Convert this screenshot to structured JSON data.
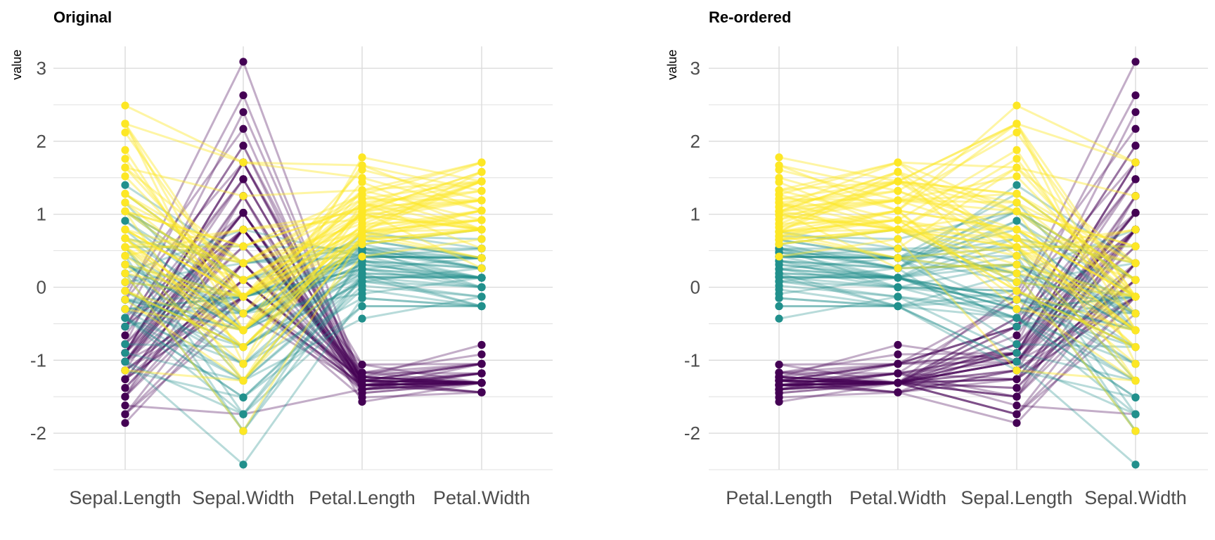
{
  "colors": {
    "setosa": "#440154",
    "versicolor": "#21908C",
    "virginica": "#FDE725",
    "grid": "#d9d9d9"
  },
  "chart_data": [
    {
      "type": "line",
      "title": "Original",
      "xlabel": "",
      "ylabel": "value",
      "ylim": [
        -2.5,
        3.3
      ],
      "yticks": [
        -2,
        -1,
        0,
        1,
        2,
        3
      ],
      "categories": [
        "Sepal.Length",
        "Sepal.Width",
        "Petal.Length",
        "Petal.Width"
      ],
      "grid": true,
      "legend": "none"
    },
    {
      "type": "line",
      "title": "Re-ordered",
      "xlabel": "",
      "ylabel": "value",
      "ylim": [
        -2.5,
        3.3
      ],
      "yticks": [
        -2,
        -1,
        0,
        1,
        2,
        3
      ],
      "categories": [
        "Petal.Length",
        "Petal.Width",
        "Sepal.Length",
        "Sepal.Width"
      ],
      "grid": true,
      "legend": "none"
    }
  ],
  "observations": [
    {
      "g": 0,
      "SL": -0.9,
      "SW": 1.02,
      "PL": -1.34,
      "PW": -1.31
    },
    {
      "g": 0,
      "SL": -1.14,
      "SW": -0.13,
      "PL": -1.34,
      "PW": -1.31
    },
    {
      "g": 0,
      "SL": -1.38,
      "SW": 0.33,
      "PL": -1.4,
      "PW": -1.31
    },
    {
      "g": 0,
      "SL": -1.5,
      "SW": 0.1,
      "PL": -1.28,
      "PW": -1.31
    },
    {
      "g": 0,
      "SL": -1.02,
      "SW": 1.25,
      "PL": -1.34,
      "PW": -1.31
    },
    {
      "g": 0,
      "SL": -0.54,
      "SW": 1.94,
      "PL": -1.17,
      "PW": -1.05
    },
    {
      "g": 0,
      "SL": -1.5,
      "SW": 0.79,
      "PL": -1.34,
      "PW": -1.18
    },
    {
      "g": 0,
      "SL": -1.02,
      "SW": 0.79,
      "PL": -1.28,
      "PW": -1.31
    },
    {
      "g": 0,
      "SL": -1.74,
      "SW": -0.36,
      "PL": -1.34,
      "PW": -1.31
    },
    {
      "g": 0,
      "SL": -1.14,
      "SW": 0.1,
      "PL": -1.28,
      "PW": -1.44
    },
    {
      "g": 0,
      "SL": -0.54,
      "SW": 1.48,
      "PL": -1.28,
      "PW": -1.31
    },
    {
      "g": 0,
      "SL": -1.26,
      "SW": 0.79,
      "PL": -1.23,
      "PW": -1.31
    },
    {
      "g": 0,
      "SL": -1.26,
      "SW": -0.13,
      "PL": -1.34,
      "PW": -1.44
    },
    {
      "g": 0,
      "SL": -1.86,
      "SW": -0.13,
      "PL": -1.51,
      "PW": -1.44
    },
    {
      "g": 0,
      "SL": -0.05,
      "SW": 2.17,
      "PL": -1.45,
      "PW": -1.31
    },
    {
      "g": 0,
      "SL": -0.17,
      "SW": 3.09,
      "PL": -1.28,
      "PW": -1.05
    },
    {
      "g": 0,
      "SL": -0.54,
      "SW": 1.94,
      "PL": -1.4,
      "PW": -1.05
    },
    {
      "g": 0,
      "SL": -0.9,
      "SW": 1.02,
      "PL": -1.34,
      "PW": -1.18
    },
    {
      "g": 0,
      "SL": -0.17,
      "SW": 1.71,
      "PL": -1.17,
      "PW": -1.18
    },
    {
      "g": 0,
      "SL": -0.9,
      "SW": 1.71,
      "PL": -1.28,
      "PW": -1.18
    },
    {
      "g": 0,
      "SL": -0.54,
      "SW": 0.79,
      "PL": -1.17,
      "PW": -1.31
    },
    {
      "g": 0,
      "SL": -0.9,
      "SW": 1.48,
      "PL": -1.28,
      "PW": -1.05
    },
    {
      "g": 0,
      "SL": -1.5,
      "SW": 1.25,
      "PL": -1.57,
      "PW": -1.31
    },
    {
      "g": 0,
      "SL": -0.9,
      "SW": 0.56,
      "PL": -1.17,
      "PW": -0.92
    },
    {
      "g": 0,
      "SL": -1.26,
      "SW": 0.79,
      "PL": -1.06,
      "PW": -1.31
    },
    {
      "g": 0,
      "SL": -1.02,
      "SW": -0.13,
      "PL": -1.23,
      "PW": -1.31
    },
    {
      "g": 0,
      "SL": -1.02,
      "SW": 0.79,
      "PL": -1.23,
      "PW": -1.05
    },
    {
      "g": 0,
      "SL": -0.78,
      "SW": 1.02,
      "PL": -1.28,
      "PW": -1.31
    },
    {
      "g": 0,
      "SL": -0.78,
      "SW": 0.79,
      "PL": -1.34,
      "PW": -1.31
    },
    {
      "g": 0,
      "SL": -1.38,
      "SW": 0.33,
      "PL": -1.23,
      "PW": -1.31
    },
    {
      "g": 0,
      "SL": -1.26,
      "SW": 0.1,
      "PL": -1.23,
      "PW": -1.31
    },
    {
      "g": 0,
      "SL": -0.54,
      "SW": 0.79,
      "PL": -1.28,
      "PW": -1.05
    },
    {
      "g": 0,
      "SL": -0.78,
      "SW": 2.4,
      "PL": -1.28,
      "PW": -1.44
    },
    {
      "g": 0,
      "SL": -0.42,
      "SW": 2.63,
      "PL": -1.34,
      "PW": -1.31
    },
    {
      "g": 0,
      "SL": -1.14,
      "SW": 0.1,
      "PL": -1.28,
      "PW": -1.31
    },
    {
      "g": 0,
      "SL": -1.02,
      "SW": 0.33,
      "PL": -1.45,
      "PW": -1.31
    },
    {
      "g": 0,
      "SL": -0.42,
      "SW": 1.02,
      "PL": -1.4,
      "PW": -1.31
    },
    {
      "g": 0,
      "SL": -1.14,
      "SW": 1.25,
      "PL": -1.34,
      "PW": -1.44
    },
    {
      "g": 0,
      "SL": -1.74,
      "SW": -0.13,
      "PL": -1.4,
      "PW": -1.31
    },
    {
      "g": 0,
      "SL": -0.9,
      "SW": 0.79,
      "PL": -1.28,
      "PW": -1.31
    },
    {
      "g": 0,
      "SL": -1.02,
      "SW": 1.02,
      "PL": -1.4,
      "PW": -1.18
    },
    {
      "g": 0,
      "SL": -1.62,
      "SW": -1.74,
      "PL": -1.4,
      "PW": -1.18
    },
    {
      "g": 0,
      "SL": -1.74,
      "SW": 0.33,
      "PL": -1.4,
      "PW": -1.31
    },
    {
      "g": 0,
      "SL": -1.02,
      "SW": 1.02,
      "PL": -1.23,
      "PW": -0.79
    },
    {
      "g": 0,
      "SL": -0.9,
      "SW": 1.71,
      "PL": -1.06,
      "PW": -1.05
    },
    {
      "g": 0,
      "SL": -1.26,
      "SW": -0.13,
      "PL": -1.34,
      "PW": -1.18
    },
    {
      "g": 0,
      "SL": -0.9,
      "SW": 1.71,
      "PL": -1.23,
      "PW": -1.31
    },
    {
      "g": 0,
      "SL": -1.5,
      "SW": 0.33,
      "PL": -1.34,
      "PW": -1.31
    },
    {
      "g": 0,
      "SL": -0.66,
      "SW": 1.48,
      "PL": -1.28,
      "PW": -1.31
    },
    {
      "g": 0,
      "SL": -1.02,
      "SW": 0.56,
      "PL": -1.34,
      "PW": -1.31
    },
    {
      "g": 1,
      "SL": 1.4,
      "SW": 0.33,
      "PL": 0.53,
      "PW": 0.26
    },
    {
      "g": 1,
      "SL": 0.67,
      "SW": 0.33,
      "PL": 0.42,
      "PW": 0.4
    },
    {
      "g": 1,
      "SL": 1.28,
      "SW": 0.1,
      "PL": 0.65,
      "PW": 0.4
    },
    {
      "g": 1,
      "SL": -0.42,
      "SW": -1.74,
      "PL": 0.14,
      "PW": 0.13
    },
    {
      "g": 1,
      "SL": 0.79,
      "SW": -0.59,
      "PL": 0.48,
      "PW": 0.4
    },
    {
      "g": 1,
      "SL": -0.17,
      "SW": -0.59,
      "PL": 0.42,
      "PW": 0.13
    },
    {
      "g": 1,
      "SL": 0.55,
      "SW": 0.56,
      "PL": 0.53,
      "PW": 0.53
    },
    {
      "g": 1,
      "SL": -1.14,
      "SW": -1.51,
      "PL": -0.26,
      "PW": -0.26
    },
    {
      "g": 1,
      "SL": 0.91,
      "SW": -0.36,
      "PL": 0.48,
      "PW": 0.13
    },
    {
      "g": 1,
      "SL": -0.78,
      "SW": -0.82,
      "PL": 0.08,
      "PW": 0.26
    },
    {
      "g": 1,
      "SL": -1.02,
      "SW": -2.43,
      "PL": -0.15,
      "PW": -0.26
    },
    {
      "g": 1,
      "SL": 0.07,
      "SW": -0.13,
      "PL": 0.25,
      "PW": 0.4
    },
    {
      "g": 1,
      "SL": 0.19,
      "SW": -1.97,
      "PL": 0.14,
      "PW": -0.26
    },
    {
      "g": 1,
      "SL": 0.31,
      "SW": -0.36,
      "PL": 0.53,
      "PW": 0.26
    },
    {
      "g": 1,
      "SL": -0.3,
      "SW": -0.36,
      "PL": -0.09,
      "PW": 0.13
    },
    {
      "g": 1,
      "SL": 1.04,
      "SW": 0.1,
      "PL": 0.36,
      "PW": 0.26
    },
    {
      "g": 1,
      "SL": -0.3,
      "SW": -0.13,
      "PL": 0.42,
      "PW": 0.4
    },
    {
      "g": 1,
      "SL": -0.05,
      "SW": -0.82,
      "PL": 0.19,
      "PW": -0.26
    },
    {
      "g": 1,
      "SL": 0.43,
      "SW": -1.97,
      "PL": 0.42,
      "PW": 0.4
    },
    {
      "g": 1,
      "SL": -0.3,
      "SW": -1.28,
      "PL": 0.08,
      "PW": -0.13
    },
    {
      "g": 1,
      "SL": 0.07,
      "SW": 0.33,
      "PL": 0.59,
      "PW": 0.79
    },
    {
      "g": 1,
      "SL": 0.31,
      "SW": -0.59,
      "PL": 0.14,
      "PW": 0.13
    },
    {
      "g": 1,
      "SL": 0.55,
      "SW": -1.28,
      "PL": 0.65,
      "PW": 0.4
    },
    {
      "g": 1,
      "SL": 0.31,
      "SW": -0.59,
      "PL": 0.53,
      "PW": 0.0
    },
    {
      "g": 1,
      "SL": 0.67,
      "SW": -0.36,
      "PL": 0.31,
      "PW": 0.13
    },
    {
      "g": 1,
      "SL": 0.91,
      "SW": -0.13,
      "PL": 0.36,
      "PW": 0.26
    },
    {
      "g": 1,
      "SL": 1.16,
      "SW": -0.59,
      "PL": 0.59,
      "PW": 0.26
    },
    {
      "g": 1,
      "SL": 1.04,
      "SW": -0.13,
      "PL": 0.7,
      "PW": 0.66
    },
    {
      "g": 1,
      "SL": 0.19,
      "SW": -0.36,
      "PL": 0.42,
      "PW": 0.4
    },
    {
      "g": 1,
      "SL": -0.17,
      "SW": -1.05,
      "PL": -0.15,
      "PW": -0.26
    },
    {
      "g": 1,
      "SL": -0.42,
      "SW": -1.51,
      "PL": 0.02,
      "PW": -0.13
    },
    {
      "g": 1,
      "SL": -0.42,
      "SW": -1.51,
      "PL": -0.03,
      "PW": -0.26
    },
    {
      "g": 1,
      "SL": -0.05,
      "SW": -0.82,
      "PL": 0.08,
      "PW": 0.0
    },
    {
      "g": 1,
      "SL": 0.19,
      "SW": -0.82,
      "PL": 0.76,
      "PW": 0.53
    },
    {
      "g": 1,
      "SL": -0.54,
      "SW": -0.13,
      "PL": 0.42,
      "PW": 0.4
    },
    {
      "g": 1,
      "SL": 0.19,
      "SW": 0.79,
      "PL": 0.42,
      "PW": 0.53
    },
    {
      "g": 1,
      "SL": 1.04,
      "SW": 0.1,
      "PL": 0.53,
      "PW": 0.4
    },
    {
      "g": 1,
      "SL": 0.55,
      "SW": -1.74,
      "PL": 0.36,
      "PW": 0.13
    },
    {
      "g": 1,
      "SL": -0.3,
      "SW": -0.13,
      "PL": 0.19,
      "PW": 0.13
    },
    {
      "g": 1,
      "SL": -0.42,
      "SW": -1.28,
      "PL": 0.14,
      "PW": 0.13
    },
    {
      "g": 1,
      "SL": -0.42,
      "SW": -1.05,
      "PL": 0.36,
      "PW": 0.0
    },
    {
      "g": 1,
      "SL": 0.31,
      "SW": -0.13,
      "PL": 0.48,
      "PW": 0.26
    },
    {
      "g": 1,
      "SL": -0.05,
      "SW": -1.05,
      "PL": 0.14,
      "PW": 0.0
    },
    {
      "g": 1,
      "SL": -1.02,
      "SW": -1.74,
      "PL": -0.26,
      "PW": -0.26
    },
    {
      "g": 1,
      "SL": -0.3,
      "SW": -0.82,
      "PL": 0.25,
      "PW": 0.13
    },
    {
      "g": 1,
      "SL": -0.17,
      "SW": -0.13,
      "PL": 0.25,
      "PW": 0.0
    },
    {
      "g": 1,
      "SL": -0.17,
      "SW": -0.36,
      "PL": 0.25,
      "PW": 0.13
    },
    {
      "g": 1,
      "SL": 0.43,
      "SW": -0.36,
      "PL": 0.31,
      "PW": 0.13
    },
    {
      "g": 1,
      "SL": -0.9,
      "SW": -1.28,
      "PL": -0.43,
      "PW": -0.13
    },
    {
      "g": 1,
      "SL": -0.17,
      "SW": -0.59,
      "PL": 0.19,
      "PW": 0.13
    },
    {
      "g": 2,
      "SL": 0.55,
      "SW": 0.56,
      "PL": 1.27,
      "PW": 1.71
    },
    {
      "g": 2,
      "SL": -0.05,
      "SW": -0.82,
      "PL": 0.76,
      "PW": 0.92
    },
    {
      "g": 2,
      "SL": 1.52,
      "SW": -0.13,
      "PL": 1.21,
      "PW": 1.19
    },
    {
      "g": 2,
      "SL": 0.55,
      "SW": -0.36,
      "PL": 1.04,
      "PW": 0.79
    },
    {
      "g": 2,
      "SL": 0.79,
      "SW": -0.13,
      "PL": 1.16,
      "PW": 1.32
    },
    {
      "g": 2,
      "SL": 2.12,
      "SW": -0.13,
      "PL": 1.61,
      "PW": 1.19
    },
    {
      "g": 2,
      "SL": -1.14,
      "SW": -1.28,
      "PL": 0.42,
      "PW": 0.66
    },
    {
      "g": 2,
      "SL": 1.76,
      "SW": -0.36,
      "PL": 1.44,
      "PW": 0.79
    },
    {
      "g": 2,
      "SL": 1.04,
      "SW": -1.28,
      "PL": 1.16,
      "PW": 0.79
    },
    {
      "g": 2,
      "SL": 1.64,
      "SW": 1.25,
      "PL": 1.33,
      "PW": 1.71
    },
    {
      "g": 2,
      "SL": 0.79,
      "SW": 0.33,
      "PL": 0.76,
      "PW": 1.05
    },
    {
      "g": 2,
      "SL": 0.67,
      "SW": -0.82,
      "PL": 0.87,
      "PW": 0.92
    },
    {
      "g": 2,
      "SL": 1.16,
      "SW": -0.13,
      "PL": 0.99,
      "PW": 1.19
    },
    {
      "g": 2,
      "SL": -0.17,
      "SW": -1.28,
      "PL": 0.7,
      "PW": 1.05
    },
    {
      "g": 2,
      "SL": -0.05,
      "SW": -0.59,
      "PL": 0.76,
      "PW": 1.58
    },
    {
      "g": 2,
      "SL": 0.67,
      "SW": 0.33,
      "PL": 0.87,
      "PW": 1.45
    },
    {
      "g": 2,
      "SL": 0.79,
      "SW": -0.13,
      "PL": 0.99,
      "PW": 0.79
    },
    {
      "g": 2,
      "SL": 2.24,
      "SW": 1.71,
      "PL": 1.67,
      "PW": 1.32
    },
    {
      "g": 2,
      "SL": 2.24,
      "SW": -1.05,
      "PL": 1.78,
      "PW": 1.45
    },
    {
      "g": 2,
      "SL": 0.19,
      "SW": -1.97,
      "PL": 0.7,
      "PW": 0.4
    },
    {
      "g": 2,
      "SL": 1.28,
      "SW": 0.33,
      "PL": 1.1,
      "PW": 1.45
    },
    {
      "g": 2,
      "SL": -0.3,
      "SW": -0.59,
      "PL": 0.65,
      "PW": 1.05
    },
    {
      "g": 2,
      "SL": 2.24,
      "SW": -0.59,
      "PL": 1.67,
      "PW": 1.05
    },
    {
      "g": 2,
      "SL": 0.55,
      "SW": -0.82,
      "PL": 0.65,
      "PW": 0.79
    },
    {
      "g": 2,
      "SL": 1.04,
      "SW": 0.56,
      "PL": 1.1,
      "PW": 1.19
    },
    {
      "g": 2,
      "SL": 1.64,
      "SW": 0.33,
      "PL": 1.27,
      "PW": 0.79
    },
    {
      "g": 2,
      "SL": 0.43,
      "SW": -0.59,
      "PL": 0.59,
      "PW": 0.79
    },
    {
      "g": 2,
      "SL": 0.31,
      "SW": -0.13,
      "PL": 0.65,
      "PW": 0.79
    },
    {
      "g": 2,
      "SL": 0.67,
      "SW": -0.59,
      "PL": 1.04,
      "PW": 1.19
    },
    {
      "g": 2,
      "SL": 1.64,
      "SW": -0.13,
      "PL": 1.16,
      "PW": 0.53
    },
    {
      "g": 2,
      "SL": 1.88,
      "SW": -0.59,
      "PL": 1.33,
      "PW": 0.92
    },
    {
      "g": 2,
      "SL": 2.49,
      "SW": 1.71,
      "PL": 1.5,
      "PW": 1.05
    },
    {
      "g": 2,
      "SL": 0.67,
      "SW": -0.59,
      "PL": 1.04,
      "PW": 1.32
    },
    {
      "g": 2,
      "SL": 0.55,
      "SW": -0.59,
      "PL": 0.76,
      "PW": 0.4
    },
    {
      "g": 2,
      "SL": 0.31,
      "SW": -1.05,
      "PL": 1.04,
      "PW": 0.26
    },
    {
      "g": 2,
      "SL": 2.24,
      "SW": -0.13,
      "PL": 1.33,
      "PW": 1.45
    },
    {
      "g": 2,
      "SL": 0.55,
      "SW": 0.79,
      "PL": 1.04,
      "PW": 1.58
    },
    {
      "g": 2,
      "SL": 0.67,
      "SW": 0.1,
      "PL": 0.99,
      "PW": 0.79
    },
    {
      "g": 2,
      "SL": 0.19,
      "SW": -0.13,
      "PL": 0.59,
      "PW": 0.79
    },
    {
      "g": 2,
      "SL": 1.28,
      "SW": 0.1,
      "PL": 0.93,
      "PW": 1.19
    },
    {
      "g": 2,
      "SL": 1.04,
      "SW": 0.1,
      "PL": 1.04,
      "PW": 1.58
    },
    {
      "g": 2,
      "SL": 1.28,
      "SW": 0.1,
      "PL": 0.76,
      "PW": 1.45
    },
    {
      "g": 2,
      "SL": -0.05,
      "SW": -0.82,
      "PL": 0.76,
      "PW": 0.92
    },
    {
      "g": 2,
      "SL": 1.16,
      "SW": 0.33,
      "PL": 1.21,
      "PW": 1.45
    },
    {
      "g": 2,
      "SL": 1.04,
      "SW": 0.56,
      "PL": 1.1,
      "PW": 1.71
    },
    {
      "g": 2,
      "SL": 1.04,
      "SW": -0.13,
      "PL": 0.82,
      "PW": 1.45
    },
    {
      "g": 2,
      "SL": 0.55,
      "SW": -1.28,
      "PL": 0.7,
      "PW": 0.92
    },
    {
      "g": 2,
      "SL": 0.79,
      "SW": -0.13,
      "PL": 0.82,
      "PW": 1.05
    },
    {
      "g": 2,
      "SL": 0.43,
      "SW": 0.79,
      "PL": 0.93,
      "PW": 1.45
    },
    {
      "g": 2,
      "SL": 0.07,
      "SW": -0.13,
      "PL": 0.76,
      "PW": 0.79
    }
  ]
}
